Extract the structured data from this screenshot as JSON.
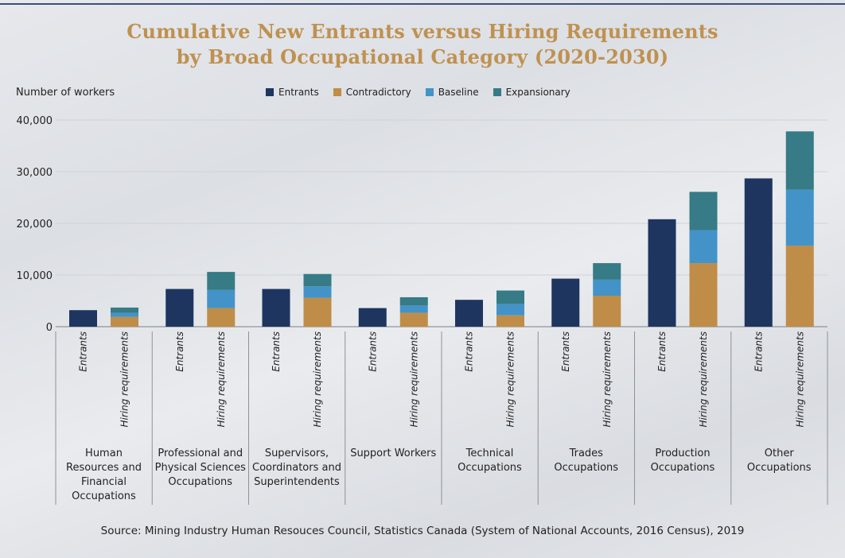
{
  "chart_data": {
    "type": "bar",
    "stacked": true,
    "title": "Cumulative New Entrants versus Hiring Requirements by Broad Occupational Category (2020-2030)",
    "title_lines": [
      "Cumulative New Entrants versus Hiring Requirements",
      "by Broad Occupational Category (2020-2030)"
    ],
    "ylabel": "Number of workers",
    "xlabel": "",
    "ylim": [
      0,
      40000
    ],
    "yticks": [
      0,
      10000,
      20000,
      30000,
      40000
    ],
    "ytick_labels": [
      "0",
      "10,000",
      "20,000",
      "30,000",
      "40,000"
    ],
    "grid": true,
    "legend_position": "top-center",
    "bar_labels": [
      "Entrants",
      "Hiring requirements"
    ],
    "legend": [
      {
        "name": "Entrants",
        "color": "#1e3560"
      },
      {
        "name": "Contradictory",
        "color": "#bf8d47"
      },
      {
        "name": "Baseline",
        "color": "#4393c8"
      },
      {
        "name": "Expansionary",
        "color": "#367b85"
      }
    ],
    "categories": [
      "Human Resources and Financial Occupations",
      "Professional and Physical Sciences Occupations",
      "Supervisors, Coordinators and Superintendents",
      "Support Workers",
      "Technical Occupations",
      "Trades Occupations",
      "Production Occupations",
      "Other Occupations"
    ],
    "category_lines": [
      [
        "Human",
        "Resources and",
        "Financial",
        "Occupations"
      ],
      [
        "Professional and",
        "Physical Sciences",
        "Occupations"
      ],
      [
        "Supervisors,",
        "Coordinators and",
        "Superintendents"
      ],
      [
        "Support Workers"
      ],
      [
        "Technical",
        "Occupations"
      ],
      [
        "Trades",
        "Occupations"
      ],
      [
        "Production",
        "Occupations"
      ],
      [
        "Other",
        "Occupations"
      ]
    ],
    "entrants": [
      3200,
      7300,
      7300,
      3600,
      5200,
      9300,
      20800,
      28700
    ],
    "hiring_requirements_cumulative": {
      "Contradictory": [
        1900,
        3600,
        5600,
        2700,
        2200,
        6000,
        12300,
        15700
      ],
      "Baseline": [
        2700,
        7100,
        7800,
        4100,
        4400,
        9100,
        18700,
        26500
      ],
      "Expansionary": [
        3700,
        10600,
        10200,
        5700,
        7000,
        12300,
        26100,
        37800
      ]
    }
  },
  "source": "Source: Mining Industry Human Resouces Council, Statistics Canada (System of National Accounts, 2016 Census), 2019"
}
